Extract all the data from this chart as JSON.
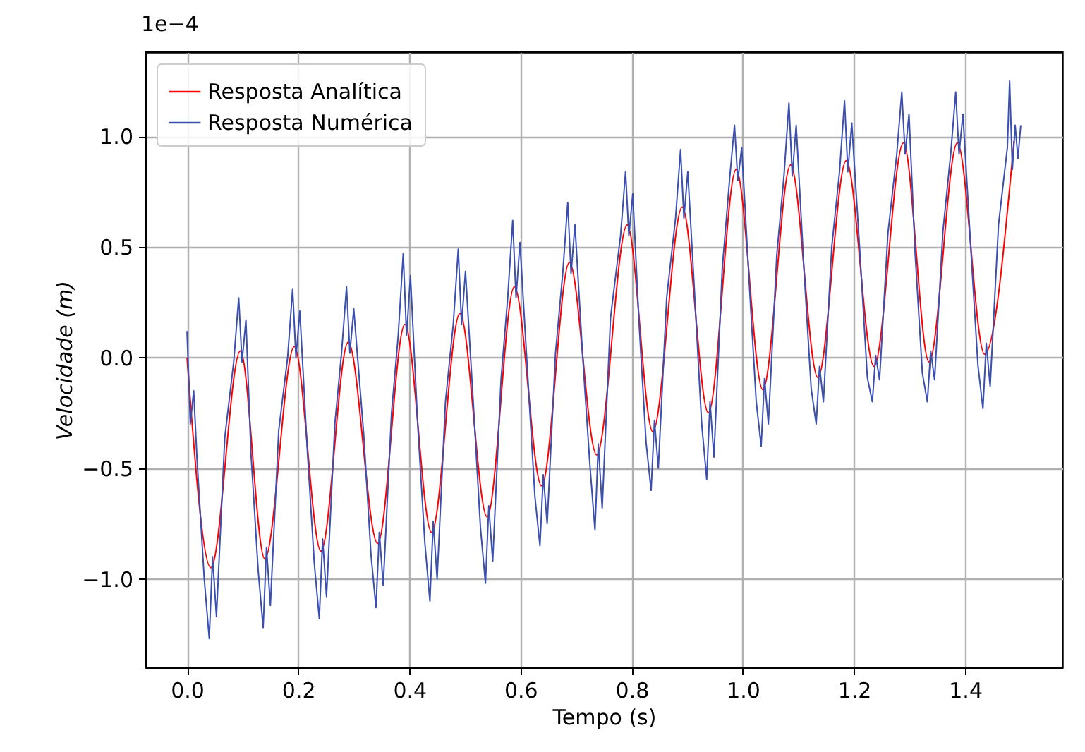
{
  "chart_data": {
    "type": "line",
    "xlabel": "Tempo (s)",
    "ylabel": "Velocidade (m)",
    "annotations": [
      "1e−4"
    ],
    "xlim": [
      -0.075,
      1.575
    ],
    "ylim": [
      -1.4,
      1.38
    ],
    "xticks": [
      {
        "value": 0,
        "label": "0.0"
      },
      {
        "value": 0.2,
        "label": "0.2"
      },
      {
        "value": 0.4,
        "label": "0.4"
      },
      {
        "value": 0.6,
        "label": "0.6"
      },
      {
        "value": 0.8,
        "label": "0.8"
      },
      {
        "value": 1,
        "label": "1.0"
      },
      {
        "value": 1.2,
        "label": "1.2"
      },
      {
        "value": 1.4,
        "label": "1.4"
      }
    ],
    "yticks": [
      {
        "value": -1,
        "label": "−1.0"
      },
      {
        "value": -0.5,
        "label": "−0.5"
      },
      {
        "value": 0,
        "label": "0.0"
      },
      {
        "value": 0.5,
        "label": "0.5"
      },
      {
        "value": 1,
        "label": "1.0"
      }
    ],
    "grid": true,
    "legend": "top left",
    "line_style": "solid",
    "series": [
      {
        "name": "Resposta Analítica",
        "color": "#ff0000",
        "x": [
          0,
          0.043,
          0.096,
          0.14,
          0.193,
          0.241,
          0.29,
          0.343,
          0.392,
          0.44,
          0.491,
          0.54,
          0.589,
          0.638,
          0.688,
          0.737,
          0.792,
          0.838,
          0.891,
          0.938,
          0.988,
          1.036,
          1.086,
          1.135,
          1.186,
          1.236,
          1.289,
          1.335,
          1.386,
          1.435,
          1.488
        ],
        "values": [
          0,
          -0.95,
          0.03,
          -0.91,
          0.05,
          -0.875,
          0.07,
          -0.84,
          0.15,
          -0.79,
          0.2,
          -0.72,
          0.32,
          -0.58,
          0.43,
          -0.44,
          0.6,
          -0.335,
          0.68,
          -0.25,
          0.85,
          -0.145,
          0.87,
          -0.09,
          0.89,
          -0.04,
          0.97,
          -0.02,
          0.97,
          0.015,
          0.98
        ]
      },
      {
        "name": "Resposta Numérica",
        "color": "#3a4fb0",
        "x": [
          0,
          0.006,
          0.012,
          0.018,
          0.031,
          0.04,
          0.046,
          0.053,
          0.068,
          0.084,
          0.093,
          0.099,
          0.106,
          0.115,
          0.128,
          0.137,
          0.143,
          0.15,
          0.165,
          0.181,
          0.19,
          0.196,
          0.203,
          0.216,
          0.229,
          0.238,
          0.244,
          0.251,
          0.266,
          0.278,
          0.287,
          0.293,
          0.3,
          0.318,
          0.331,
          0.34,
          0.346,
          0.353,
          0.368,
          0.38,
          0.389,
          0.395,
          0.402,
          0.415,
          0.428,
          0.437,
          0.443,
          0.45,
          0.465,
          0.479,
          0.488,
          0.494,
          0.501,
          0.515,
          0.528,
          0.537,
          0.543,
          0.55,
          0.565,
          0.577,
          0.586,
          0.592,
          0.599,
          0.613,
          0.626,
          0.635,
          0.641,
          0.648,
          0.663,
          0.676,
          0.685,
          0.691,
          0.698,
          0.712,
          0.725,
          0.734,
          0.74,
          0.747,
          0.762,
          0.78,
          0.789,
          0.795,
          0.802,
          0.813,
          0.826,
          0.835,
          0.841,
          0.848,
          0.863,
          0.879,
          0.888,
          0.894,
          0.901,
          0.913,
          0.926,
          0.935,
          0.941,
          0.948,
          0.963,
          0.976,
          0.985,
          0.991,
          0.998,
          1.011,
          1.024,
          1.033,
          1.039,
          1.046,
          1.061,
          1.074,
          1.083,
          1.089,
          1.096,
          1.11,
          1.123,
          1.132,
          1.138,
          1.145,
          1.16,
          1.174,
          1.183,
          1.189,
          1.196,
          1.211,
          1.224,
          1.233,
          1.239,
          1.246,
          1.261,
          1.277,
          1.286,
          1.292,
          1.299,
          1.31,
          1.323,
          1.332,
          1.338,
          1.345,
          1.36,
          1.374,
          1.383,
          1.389,
          1.396,
          1.41,
          1.423,
          1.432,
          1.438,
          1.445,
          1.46,
          1.476,
          1.48,
          1.485,
          1.49,
          1.495,
          1.5
        ],
        "values": [
          0.12,
          -0.3,
          -0.15,
          -0.46,
          -1.0,
          -1.27,
          -0.9,
          -1.17,
          -0.36,
          -0.02,
          0.27,
          -0.02,
          0.17,
          -0.43,
          -0.96,
          -1.22,
          -0.86,
          -1.12,
          -0.33,
          0.0,
          0.31,
          0.0,
          0.21,
          -0.4,
          -0.93,
          -1.18,
          -0.82,
          -1.08,
          -0.3,
          0.02,
          0.32,
          0.02,
          0.22,
          -0.35,
          -0.89,
          -1.13,
          -0.79,
          -1.03,
          -0.25,
          0.1,
          0.47,
          0.1,
          0.37,
          -0.3,
          -0.84,
          -1.1,
          -0.74,
          -1.0,
          -0.2,
          0.15,
          0.49,
          0.15,
          0.39,
          -0.2,
          -0.77,
          -1.02,
          -0.67,
          -0.92,
          -0.1,
          0.27,
          0.62,
          0.27,
          0.52,
          -0.08,
          -0.63,
          -0.85,
          -0.53,
          -0.75,
          0.02,
          0.38,
          0.7,
          0.38,
          0.6,
          0.0,
          -0.49,
          -0.78,
          -0.39,
          -0.68,
          0.18,
          0.55,
          0.84,
          0.55,
          0.74,
          0.17,
          -0.385,
          -0.6,
          -0.285,
          -0.5,
          0.27,
          0.63,
          0.94,
          0.63,
          0.84,
          0.3,
          -0.3,
          -0.55,
          -0.2,
          -0.45,
          0.4,
          0.8,
          1.05,
          0.8,
          0.95,
          0.36,
          -0.195,
          -0.4,
          -0.095,
          -0.3,
          0.46,
          0.82,
          1.15,
          0.82,
          1.05,
          0.4,
          -0.14,
          -0.3,
          -0.04,
          -0.2,
          0.5,
          0.84,
          1.16,
          0.84,
          1.06,
          0.46,
          -0.09,
          -0.2,
          0.01,
          -0.1,
          0.56,
          0.92,
          1.2,
          0.92,
          1.1,
          0.47,
          -0.07,
          -0.2,
          0.03,
          -0.1,
          0.57,
          0.92,
          1.2,
          0.92,
          1.1,
          0.5,
          -0.035,
          -0.23,
          0.065,
          -0.13,
          0.6,
          0.95,
          1.25,
          0.85,
          1.05,
          0.9,
          1.05
        ]
      }
    ]
  }
}
